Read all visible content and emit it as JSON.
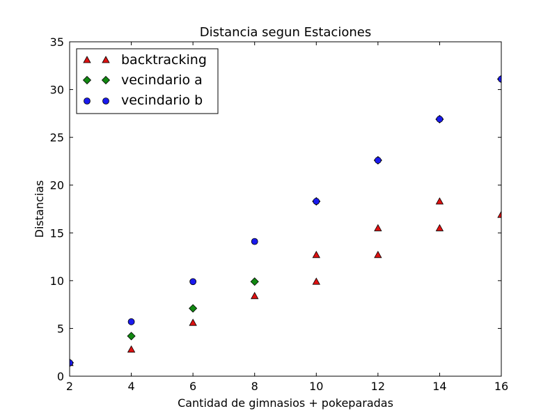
{
  "chart_data": {
    "type": "scatter",
    "title": "Distancia segun Estaciones",
    "xlabel": "Cantidad de gimnasios + pokeparadas",
    "ylabel": "Distancias",
    "xlim": [
      2,
      16
    ],
    "ylim": [
      0,
      35
    ],
    "xticks": [
      2,
      4,
      6,
      8,
      10,
      12,
      14,
      16
    ],
    "yticks": [
      0,
      5,
      10,
      15,
      20,
      25,
      30,
      35
    ],
    "legend_position": "top-left",
    "series": [
      {
        "name": "backtracking",
        "marker": "triangle",
        "color": "#dd1111",
        "points": [
          [
            2,
            1.4
          ],
          [
            4,
            2.8
          ],
          [
            6,
            5.6
          ],
          [
            8,
            8.4
          ],
          [
            10,
            9.9
          ],
          [
            10,
            12.7
          ],
          [
            12,
            12.7
          ],
          [
            12,
            15.5
          ],
          [
            14,
            15.5
          ],
          [
            14,
            18.3
          ],
          [
            16,
            16.9
          ]
        ]
      },
      {
        "name": "vecindario a",
        "marker": "diamond",
        "color": "#118811",
        "points": [
          [
            2,
            1.4
          ],
          [
            4,
            4.2
          ],
          [
            6,
            7.1
          ],
          [
            8,
            9.9
          ],
          [
            10,
            18.3
          ],
          [
            12,
            22.6
          ],
          [
            14,
            26.9
          ],
          [
            16,
            31.1
          ]
        ]
      },
      {
        "name": "vecindario b",
        "marker": "circle",
        "color": "#1a1aee",
        "points": [
          [
            2,
            1.4
          ],
          [
            4,
            5.7
          ],
          [
            6,
            9.9
          ],
          [
            8,
            14.1
          ],
          [
            10,
            18.3
          ],
          [
            12,
            22.6
          ],
          [
            14,
            26.9
          ],
          [
            16,
            31.1
          ]
        ]
      }
    ]
  }
}
